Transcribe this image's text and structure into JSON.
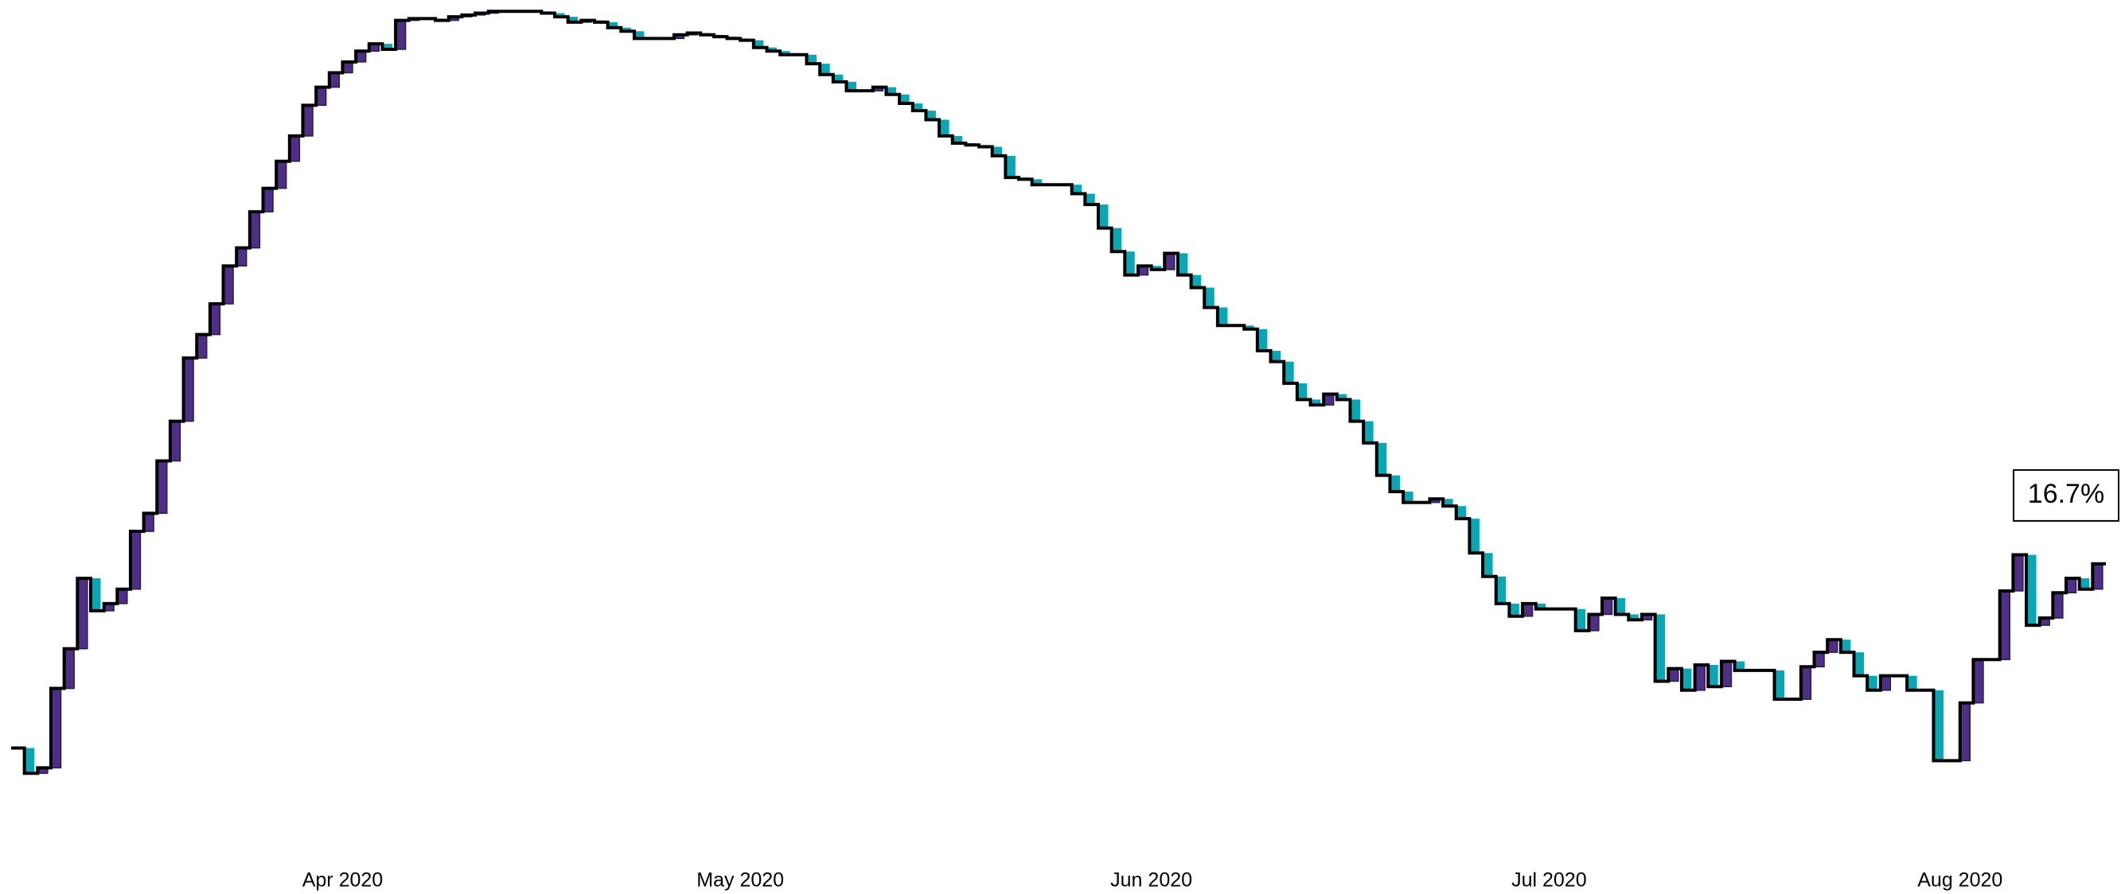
{
  "chart_data": {
    "type": "step",
    "values": [
      6.5,
      5.1,
      5.4,
      9.8,
      12.0,
      15.9,
      14.1,
      14.5,
      15.3,
      18.5,
      19.5,
      22.4,
      24.6,
      28.1,
      29.4,
      31.1,
      33.2,
      34.2,
      36.2,
      37.5,
      39.0,
      40.4,
      42.1,
      43.1,
      43.9,
      44.5,
      45.1,
      45.5,
      45.2,
      46.8,
      46.9,
      46.9,
      46.8,
      47.0,
      47.1,
      47.2,
      47.3,
      47.3,
      47.3,
      47.3,
      47.2,
      47.0,
      46.7,
      46.8,
      46.7,
      46.4,
      46.2,
      45.8,
      45.8,
      45.8,
      46.0,
      46.1,
      46.0,
      45.9,
      45.8,
      45.7,
      45.3,
      45.1,
      44.9,
      44.9,
      44.4,
      43.8,
      43.4,
      42.9,
      42.9,
      43.1,
      42.7,
      42.2,
      41.8,
      41.3,
      40.4,
      40.0,
      39.9,
      39.8,
      39.3,
      38.1,
      38.0,
      37.7,
      37.7,
      37.7,
      37.2,
      36.6,
      35.3,
      34.0,
      32.7,
      33.2,
      33.0,
      33.9,
      32.7,
      32.0,
      30.9,
      29.9,
      29.9,
      29.7,
      28.5,
      27.9,
      26.7,
      25.8,
      25.5,
      26.1,
      25.8,
      24.6,
      23.4,
      21.6,
      20.7,
      20.1,
      20.1,
      20.3,
      19.9,
      19.2,
      17.3,
      16.0,
      14.5,
      13.8,
      14.5,
      14.2,
      14.2,
      14.2,
      13.0,
      13.9,
      14.8,
      13.9,
      13.6,
      13.9,
      10.2,
      10.9,
      9.7,
      11.1,
      9.9,
      11.3,
      10.8,
      10.8,
      10.8,
      9.2,
      9.2,
      11.0,
      11.8,
      12.5,
      11.8,
      10.5,
      9.7,
      10.5,
      10.5,
      9.7,
      9.7,
      5.8,
      5.8,
      9.0,
      11.4,
      11.4,
      15.2,
      17.2,
      13.3,
      13.7,
      15.1,
      15.9,
      15.3,
      16.7
    ],
    "value_labels": [
      null,
      null,
      null,
      null,
      null,
      null,
      null,
      null,
      null,
      null,
      null,
      null,
      null,
      null,
      null,
      null,
      null,
      null,
      null,
      null,
      null,
      null,
      null,
      null,
      null,
      null,
      null,
      null,
      null,
      null,
      null,
      null,
      null,
      null,
      null,
      null,
      null,
      null,
      null,
      null,
      null,
      null,
      null,
      null,
      null,
      null,
      null,
      null,
      null,
      null,
      null,
      null,
      null,
      null,
      null,
      null,
      null,
      null,
      null,
      null,
      null,
      null,
      null,
      null,
      null,
      null,
      null,
      null,
      null,
      null,
      null,
      null,
      null,
      null,
      null,
      null,
      null,
      null,
      null,
      null,
      null,
      null,
      null,
      null,
      null,
      null,
      null,
      null,
      null,
      null,
      null,
      null,
      null,
      null,
      null,
      null,
      null,
      null,
      null,
      null,
      null,
      null,
      null,
      null,
      null,
      null,
      null,
      null,
      null,
      null,
      null,
      null,
      null,
      null,
      null,
      null,
      null,
      null,
      null,
      null,
      null,
      null,
      null,
      null,
      null,
      null,
      null,
      null,
      null,
      null,
      null,
      null,
      null,
      null,
      null,
      null,
      null,
      null,
      null,
      null,
      null,
      null,
      null,
      null,
      null,
      null,
      null,
      null,
      null,
      null,
      null,
      null,
      null,
      null,
      null,
      null,
      null,
      "16.7%"
    ],
    "xlim": [
      0,
      158
    ],
    "xticks": [
      {
        "value": 25,
        "label": "Apr 2020"
      },
      {
        "value": 55,
        "label": "May 2020"
      },
      {
        "value": 86,
        "label": "Jun 2020"
      },
      {
        "value": 116,
        "label": "Jul 2020"
      },
      {
        "value": 147,
        "label": "Aug 2020"
      }
    ],
    "ylim": [
      0,
      48
    ],
    "color": "#000000",
    "up_color": "#4f2f86",
    "down_color": "#0ba5b4"
  }
}
